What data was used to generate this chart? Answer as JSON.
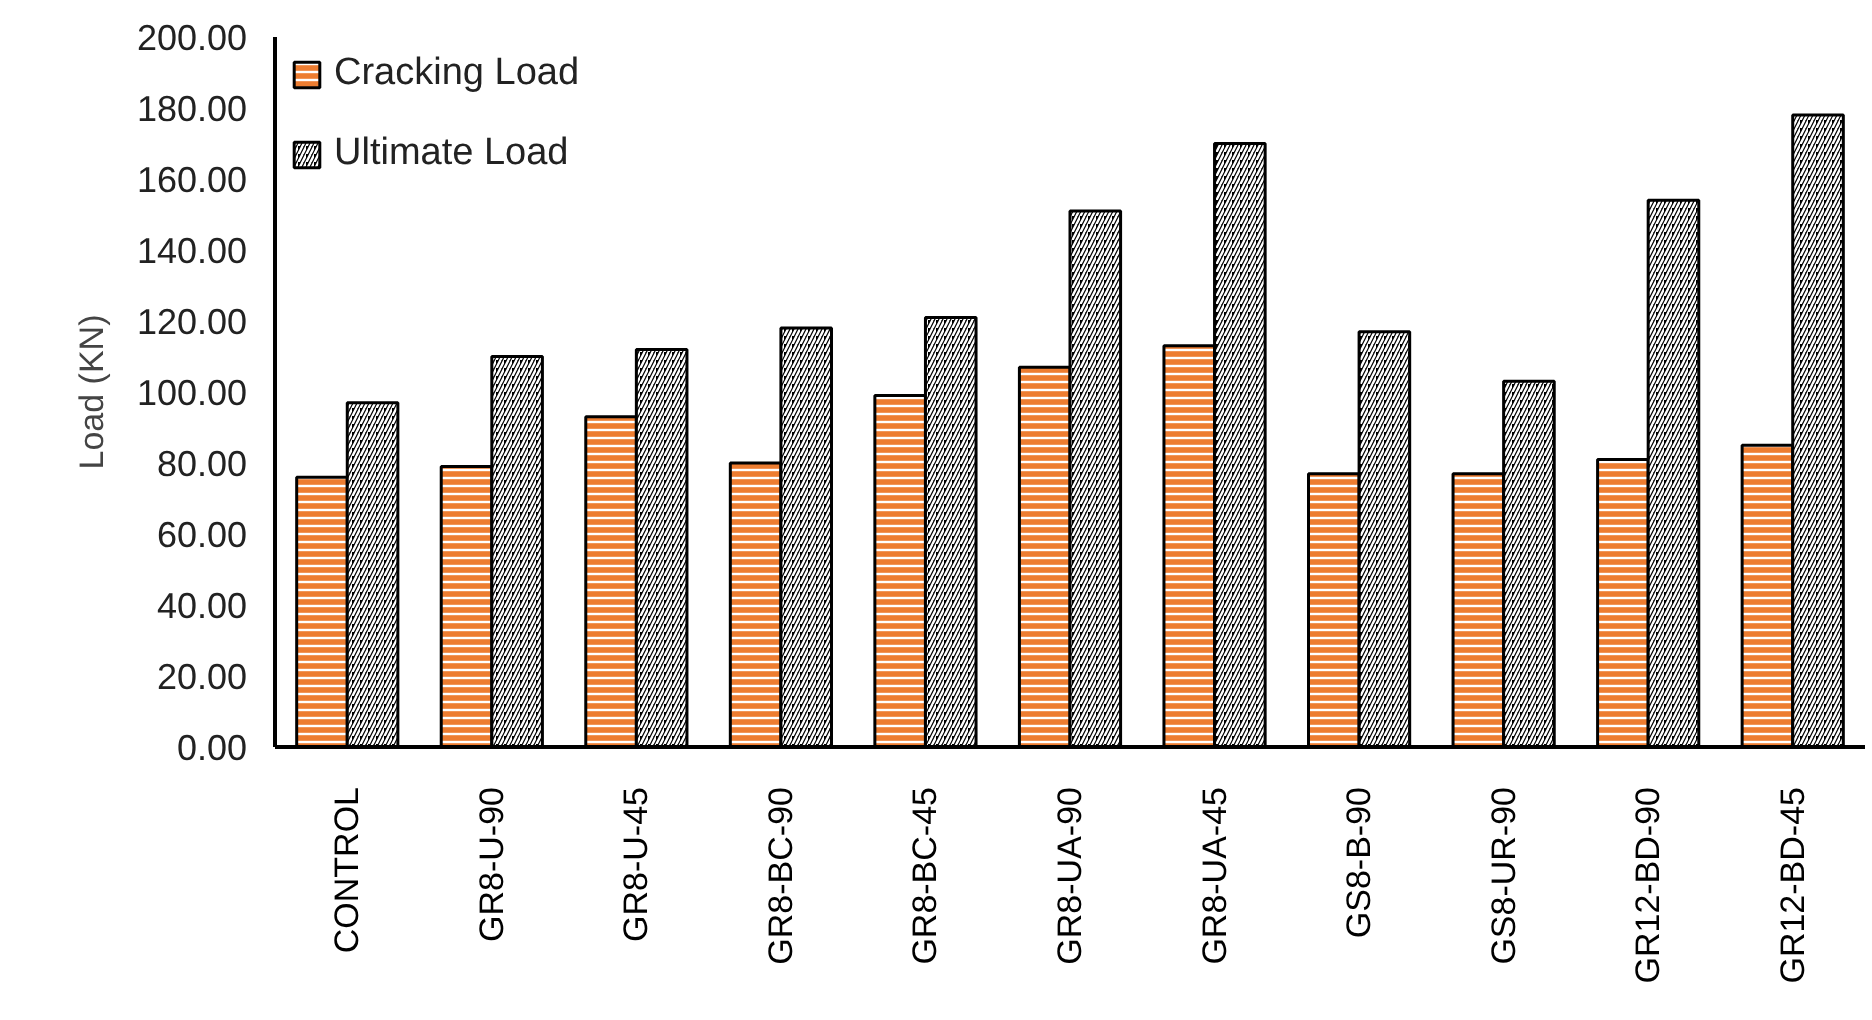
{
  "chart_data": {
    "type": "bar",
    "ylabel": "Load (KN)",
    "categories": [
      "CONTROL",
      "GR8-U-90",
      "GR8-U-45",
      "GR8-BC-90",
      "GR8-BC-45",
      "GR8-UA-90",
      "GR8-UA-45",
      "GS8-B-90",
      "GS8-UR-90",
      "GR12-BD-90",
      "GR12-BD-45"
    ],
    "series": [
      {
        "name": "Cracking Load",
        "color": "#ed7d31",
        "values": [
          76,
          79,
          93,
          80,
          99,
          107,
          113,
          77,
          77,
          81,
          85
        ]
      },
      {
        "name": "Ultimate Load",
        "color": "#000000",
        "values": [
          97,
          110,
          112,
          118,
          121,
          151,
          170,
          117,
          103,
          154,
          178
        ]
      }
    ],
    "ylim": [
      0,
      200
    ],
    "yticks": [
      {
        "value": 0,
        "label": "0.00"
      },
      {
        "value": 20,
        "label": "20.00"
      },
      {
        "value": 40,
        "label": "40.00"
      },
      {
        "value": 60,
        "label": "60.00"
      },
      {
        "value": 80,
        "label": "80.00"
      },
      {
        "value": 100,
        "label": "100.00"
      },
      {
        "value": 120,
        "label": "120.00"
      },
      {
        "value": 140,
        "label": "140.00"
      },
      {
        "value": 160,
        "label": "160.00"
      },
      {
        "value": 180,
        "label": "180.00"
      },
      {
        "value": 200,
        "label": "200.00"
      }
    ],
    "grid": false,
    "legend": "top left"
  }
}
